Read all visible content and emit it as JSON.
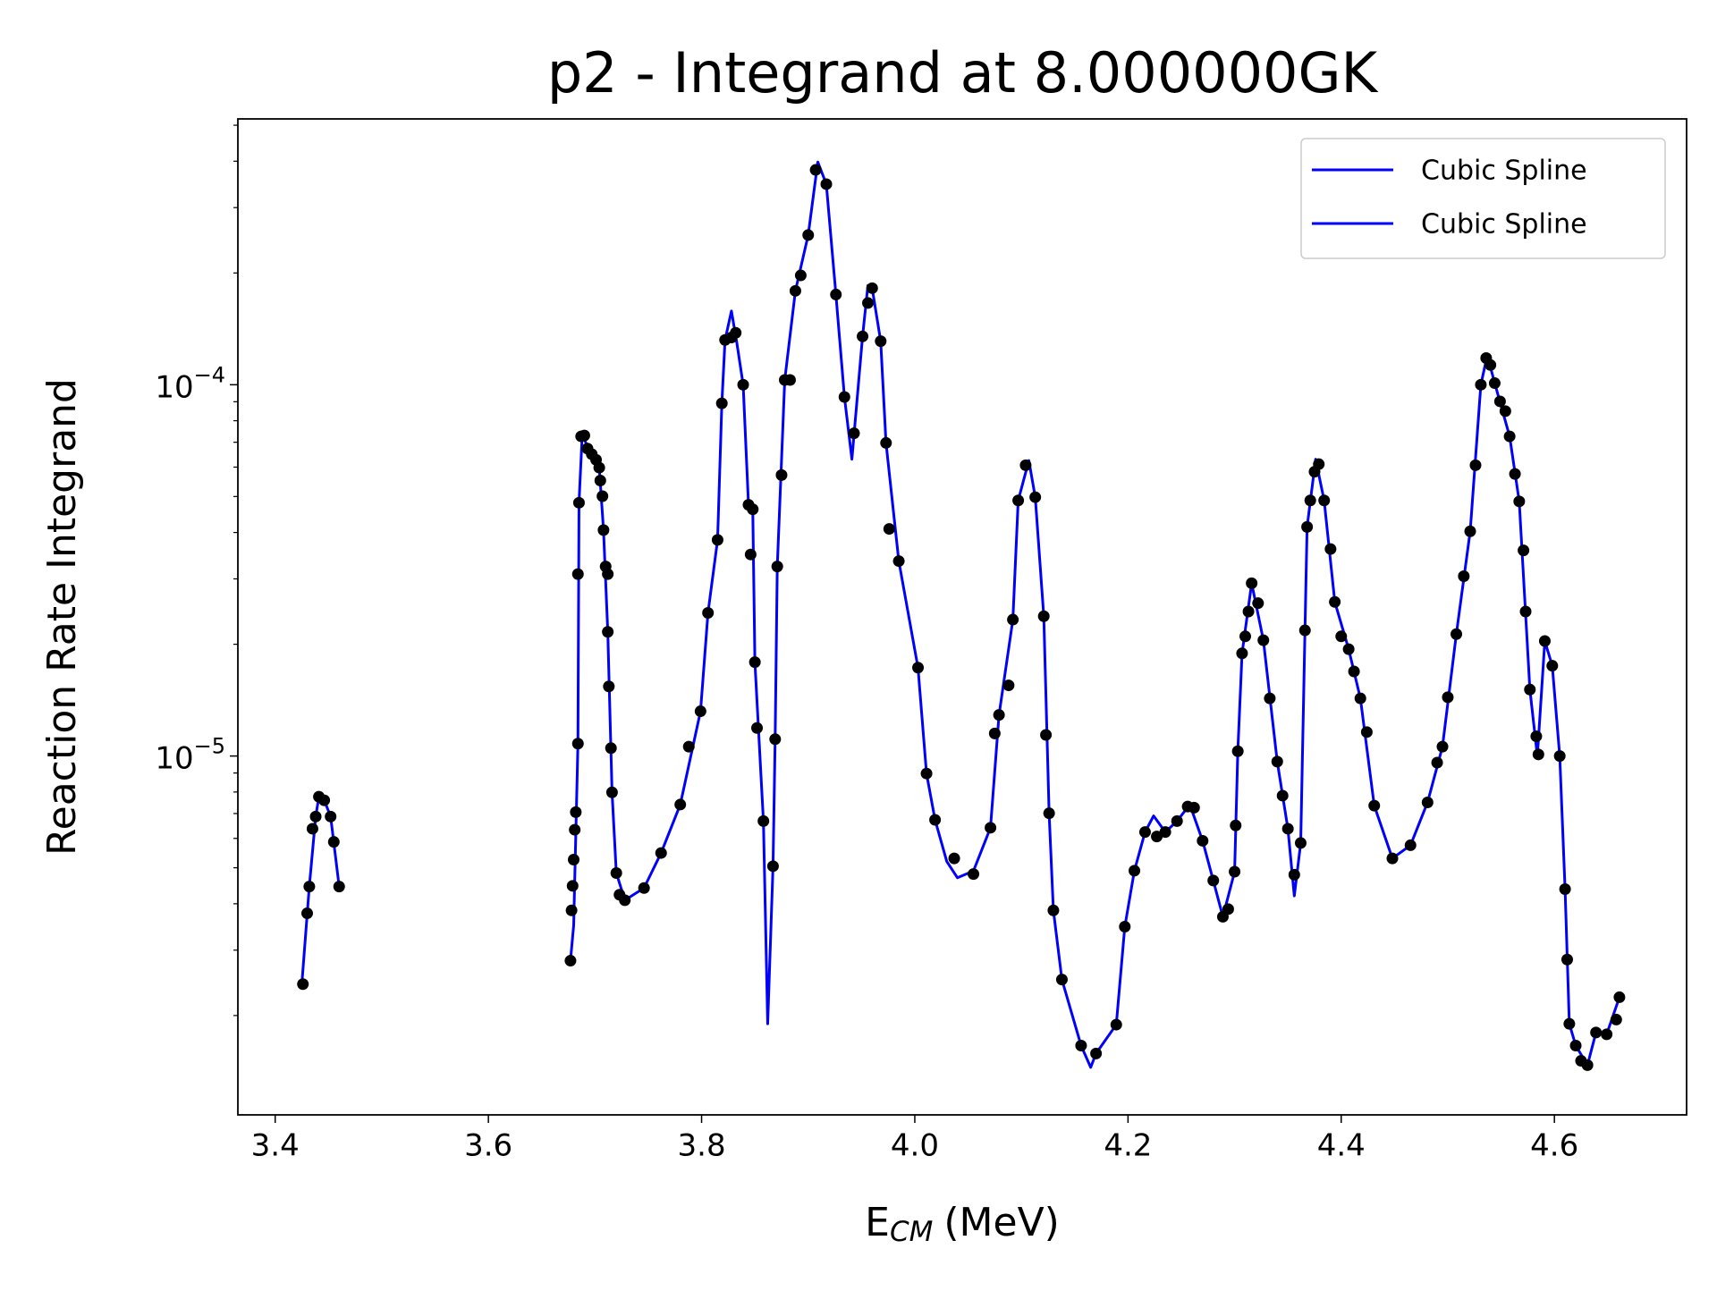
{
  "chart_data": {
    "type": "line",
    "title": "p2 - Integrand at 8.000000GK",
    "xlabel": "E",
    "xlabel_sub": "CM",
    "xlabel_unit": "(MeV)",
    "ylabel": "Reaction Rate Integrand",
    "log_y": true,
    "legend": "upper right",
    "xlim": [
      3.365,
      4.724
    ],
    "ylim": [
      1.08e-06,
      0.00052
    ],
    "xticks": [
      3.4,
      3.6,
      3.8,
      {
        "value": 4,
        "label": "4.0"
      },
      4.2,
      4.4,
      4.6
    ],
    "yticks": [
      {
        "value": 1e-05,
        "label": "10",
        "exponent": "−5"
      },
      {
        "value": 0.0001,
        "label": "10",
        "exponent": "−4"
      }
    ],
    "yminorticks": [
      2e-06,
      3e-06,
      4e-06,
      5e-06,
      6e-06,
      7e-06,
      8e-06,
      9e-06,
      2e-05,
      3e-05,
      4e-05,
      5e-05,
      6e-05,
      7e-05,
      8e-05,
      9e-05,
      0.0002,
      0.0003,
      0.0004,
      0.0005
    ],
    "series": [
      {
        "name": "Cubic Spline",
        "color": "#0000ff",
        "x": [
          3.425,
          3.432,
          3.438,
          3.441,
          3.446,
          3.452,
          3.46
        ],
        "values": [
          2.43e-06,
          4.45e-06,
          6.87e-06,
          7.77e-06,
          7.6e-06,
          6.87e-06,
          4.45e-06
        ]
      },
      {
        "name": "Cubic Spline",
        "color": "#0000ff",
        "x": [
          3.677,
          3.68,
          3.684,
          3.685,
          3.688,
          3.697,
          3.704,
          3.708,
          3.712,
          3.716,
          3.72,
          3.728,
          3.746,
          3.762,
          3.78,
          3.799,
          3.806,
          3.815,
          3.819,
          3.822,
          3.828,
          3.833,
          3.839,
          3.844,
          3.848,
          3.85,
          3.858,
          3.862,
          3.867,
          3.869,
          3.871,
          3.878,
          3.888,
          3.9,
          3.909,
          3.917,
          3.926,
          3.934,
          3.941,
          3.951,
          3.956,
          3.96,
          3.968,
          3.973,
          3.985,
          4.003,
          4.011,
          4.019,
          4.03,
          4.04,
          4.055,
          4.071,
          4.079,
          4.092,
          4.097,
          4.107,
          4.113,
          4.121,
          4.126,
          4.13,
          4.138,
          4.156,
          4.165,
          4.17,
          4.189,
          4.197,
          4.206,
          4.216,
          4.224,
          4.235,
          4.246,
          4.258,
          4.27,
          4.28,
          4.289,
          4.3,
          4.303,
          4.307,
          4.316,
          4.327,
          4.34,
          4.35,
          4.356,
          4.362,
          4.366,
          4.368,
          4.376,
          4.384,
          4.394,
          4.407,
          4.418,
          4.431,
          4.448,
          4.465,
          4.481,
          4.495,
          4.508,
          4.521,
          4.531,
          4.537,
          4.544,
          4.558,
          4.567,
          4.577,
          4.584,
          4.591,
          4.598,
          4.605,
          4.61,
          4.614,
          4.62,
          4.631,
          4.639,
          4.649,
          4.661
        ],
        "values": [
          2.81e-06,
          3.5e-06,
          1.08e-05,
          4.81e-05,
          7.3e-05,
          6.5e-05,
          5.98e-05,
          4.06e-05,
          2.16e-05,
          7.98e-06,
          4.84e-06,
          4.09e-06,
          4.41e-06,
          5.48e-06,
          7.4e-06,
          1.32e-05,
          2.43e-05,
          3.82e-05,
          8.91e-05,
          0.000132,
          0.000158,
          0.00013,
          0.0001,
          4.75e-05,
          4.62e-05,
          1.79e-05,
          6.68e-06,
          1.9e-06,
          5.05e-06,
          1.11e-05,
          3.24e-05,
          0.000103,
          0.000179,
          0.000253,
          0.000398,
          0.000347,
          0.000175,
          9.27e-05,
          6.3e-05,
          0.000135,
          0.000185,
          0.000182,
          0.000131,
          6.97e-05,
          3.35e-05,
          1.73e-05,
          8.97e-06,
          6.73e-06,
          5.2e-06,
          4.7e-06,
          4.9e-06,
          6.41e-06,
          1.29e-05,
          2.33e-05,
          4.88e-05,
          6.25e-05,
          4.98e-05,
          2.38e-05,
          7.01e-06,
          3.84e-06,
          2.5e-06,
          1.66e-06,
          1.45e-06,
          1.58e-06,
          1.89e-06,
          3.47e-06,
          4.91e-06,
          6.24e-06,
          6.9e-06,
          6.24e-06,
          6.68e-06,
          7.4e-06,
          5.91e-06,
          4.62e-06,
          3.69e-06,
          4.88e-06,
          1.03e-05,
          1.89e-05,
          2.92e-05,
          2.05e-05,
          9.66e-06,
          6.37e-06,
          4.2e-06,
          5.83e-06,
          2.18e-05,
          4.14e-05,
          6.3e-05,
          4.88e-05,
          2.6e-05,
          1.94e-05,
          1.43e-05,
          7.35e-06,
          5.3e-06,
          5.75e-06,
          7.5e-06,
          1.06e-05,
          2.13e-05,
          4.03e-05,
          0.0001,
          0.00012,
          0.000101,
          7.26e-05,
          4.85e-05,
          1.51e-05,
          1e-05,
          2.04e-05,
          1.75e-05,
          1e-05,
          4.38e-06,
          1.9e-06,
          1.66e-06,
          1.47e-06,
          1.8e-06,
          1.78e-06,
          2.24e-06
        ]
      }
    ],
    "points": {
      "color": "#000000",
      "x": [
        3.426,
        3.43,
        3.432,
        3.435,
        3.438,
        3.441,
        3.446,
        3.452,
        3.455,
        3.46,
        3.677,
        3.678,
        3.679,
        3.68,
        3.681,
        3.682,
        3.684,
        3.684,
        3.685,
        3.687,
        3.69,
        3.693,
        3.697,
        3.701,
        3.704,
        3.705,
        3.707,
        3.708,
        3.71,
        3.712,
        3.712,
        3.713,
        3.715,
        3.716,
        3.72,
        3.723,
        3.728,
        3.746,
        3.762,
        3.78,
        3.788,
        3.799,
        3.806,
        3.815,
        3.819,
        3.822,
        3.828,
        3.832,
        3.839,
        3.844,
        3.848,
        3.846,
        3.85,
        3.852,
        3.858,
        3.867,
        3.869,
        3.871,
        3.875,
        3.878,
        3.883,
        3.888,
        3.893,
        3.9,
        3.907,
        3.917,
        3.926,
        3.934,
        3.943,
        3.951,
        3.956,
        3.96,
        3.968,
        3.973,
        3.976,
        3.985,
        4.003,
        4.011,
        4.019,
        4.037,
        4.055,
        4.071,
        4.075,
        4.079,
        4.088,
        4.092,
        4.097,
        4.104,
        4.113,
        4.121,
        4.123,
        4.126,
        4.13,
        4.138,
        4.156,
        4.17,
        4.189,
        4.197,
        4.206,
        4.216,
        4.227,
        4.235,
        4.246,
        4.256,
        4.262,
        4.27,
        4.28,
        4.289,
        4.294,
        4.3,
        4.301,
        4.303,
        4.307,
        4.31,
        4.313,
        4.316,
        4.322,
        4.327,
        4.333,
        4.34,
        4.345,
        4.35,
        4.356,
        4.362,
        4.366,
        4.368,
        4.371,
        4.375,
        4.379,
        4.384,
        4.39,
        4.394,
        4.4,
        4.407,
        4.412,
        4.418,
        4.424,
        4.431,
        4.448,
        4.465,
        4.481,
        4.49,
        4.495,
        4.5,
        4.508,
        4.515,
        4.521,
        4.526,
        4.531,
        4.536,
        4.54,
        4.544,
        4.549,
        4.554,
        4.558,
        4.563,
        4.567,
        4.571,
        4.573,
        4.577,
        4.583,
        4.585,
        4.591,
        4.598,
        4.605,
        4.61,
        4.612,
        4.614,
        4.62,
        4.625,
        4.631,
        4.639,
        4.649,
        4.658,
        4.661
      ],
      "values": [
        2.43e-06,
        3.77e-06,
        4.45e-06,
        6.37e-06,
        6.87e-06,
        7.77e-06,
        7.6e-06,
        6.87e-06,
        5.87e-06,
        4.45e-06,
        2.81e-06,
        3.84e-06,
        4.47e-06,
        5.26e-06,
        6.33e-06,
        7.06e-06,
        1.08e-05,
        3.09e-05,
        4.81e-05,
        7.26e-05,
        7.3e-05,
        6.73e-05,
        6.5e-05,
        6.28e-05,
        5.98e-05,
        5.52e-05,
        5.01e-05,
        4.06e-05,
        3.24e-05,
        3.09e-05,
        2.16e-05,
        1.54e-05,
        1.05e-05,
        7.98e-06,
        4.84e-06,
        4.23e-06,
        4.09e-06,
        4.41e-06,
        5.48e-06,
        7.4e-06,
        1.06e-05,
        1.32e-05,
        2.43e-05,
        3.82e-05,
        8.91e-05,
        0.000132,
        0.000134,
        0.000138,
        0.0001,
        4.75e-05,
        4.62e-05,
        3.49e-05,
        1.79e-05,
        1.19e-05,
        6.68e-06,
        5.05e-06,
        1.11e-05,
        3.24e-05,
        5.71e-05,
        0.000103,
        0.000103,
        0.000179,
        0.000197,
        0.000253,
        0.000379,
        0.000347,
        0.000175,
        9.27e-05,
        7.4e-05,
        0.000135,
        0.000166,
        0.000182,
        0.000131,
        6.97e-05,
        4.09e-05,
        3.35e-05,
        1.73e-05,
        8.97e-06,
        6.73e-06,
        5.3e-06,
        4.81e-06,
        6.41e-06,
        1.15e-05,
        1.29e-05,
        1.55e-05,
        2.33e-05,
        4.88e-05,
        6.07e-05,
        4.98e-05,
        2.38e-05,
        1.14e-05,
        7.01e-06,
        3.84e-06,
        2.5e-06,
        1.66e-06,
        1.58e-06,
        1.89e-06,
        3.47e-06,
        4.91e-06,
        6.24e-06,
        6.07e-06,
        6.24e-06,
        6.68e-06,
        7.31e-06,
        7.26e-06,
        5.91e-06,
        4.62e-06,
        3.69e-06,
        3.87e-06,
        4.88e-06,
        6.5e-06,
        1.03e-05,
        1.89e-05,
        2.1e-05,
        2.45e-05,
        2.92e-05,
        2.58e-05,
        2.05e-05,
        1.43e-05,
        9.66e-06,
        7.82e-06,
        6.37e-06,
        4.79e-06,
        5.83e-06,
        2.18e-05,
        4.14e-05,
        4.88e-05,
        5.83e-05,
        6.11e-05,
        4.88e-05,
        3.61e-05,
        2.6e-05,
        2.1e-05,
        1.94e-05,
        1.69e-05,
        1.43e-05,
        1.16e-05,
        7.35e-06,
        5.3e-06,
        5.75e-06,
        7.5e-06,
        9.6e-06,
        1.06e-05,
        1.44e-05,
        2.13e-05,
        3.05e-05,
        4.03e-05,
        6.07e-05,
        0.0001,
        0.000118,
        0.000113,
        0.000101,
        9.02e-05,
        8.49e-05,
        7.26e-05,
        5.75e-05,
        4.85e-05,
        3.58e-05,
        2.45e-05,
        1.51e-05,
        1.13e-05,
        1.01e-05,
        2.04e-05,
        1.75e-05,
        1e-05,
        4.38e-06,
        2.83e-06,
        1.9e-06,
        1.66e-06,
        1.51e-06,
        1.47e-06,
        1.8e-06,
        1.78e-06,
        1.95e-06,
        2.24e-06
      ]
    }
  }
}
